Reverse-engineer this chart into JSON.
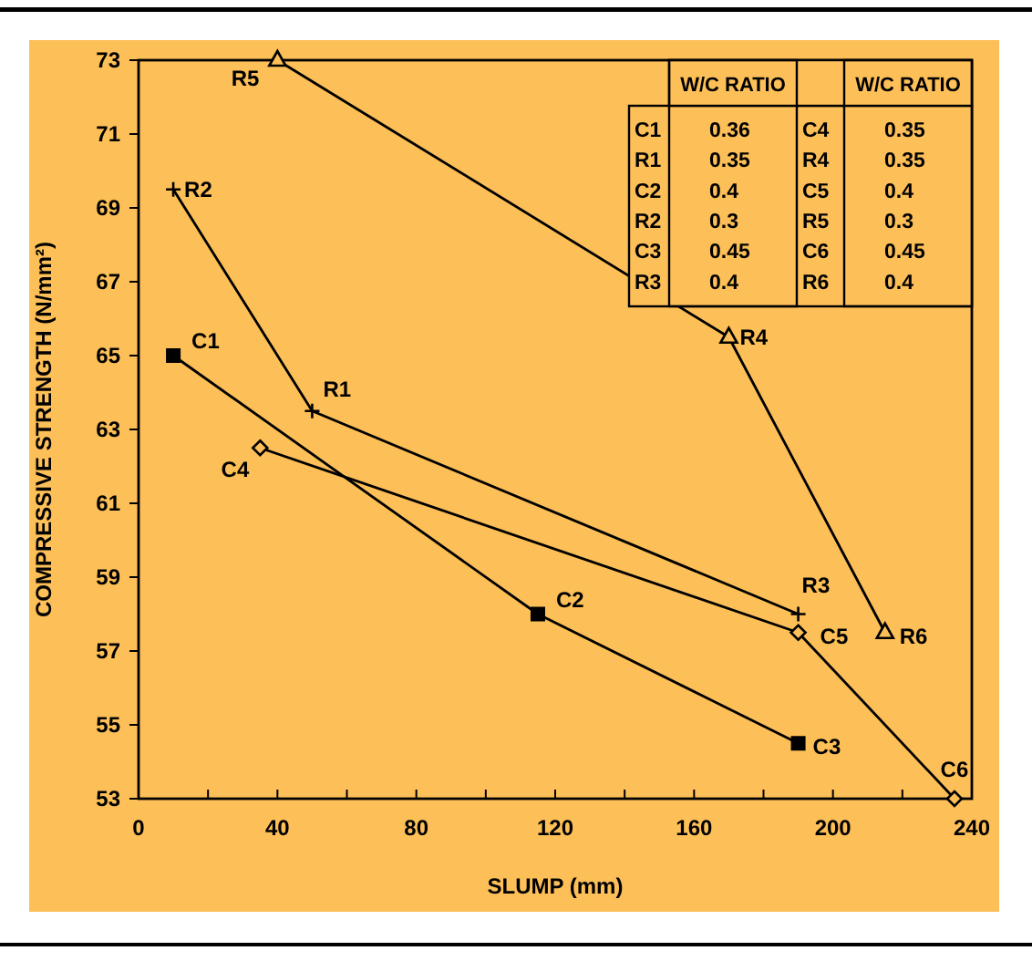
{
  "chart_data": {
    "type": "line",
    "xlabel": "SLUMP (mm)",
    "ylabel": "COMPRESSIVE STRENGTH (N/mm²)",
    "xlim": [
      0,
      240
    ],
    "ylim": [
      53,
      73
    ],
    "xticks": [
      0,
      {
        "value": 20,
        "label": null
      },
      40,
      {
        "value": 60,
        "label": null
      },
      80,
      {
        "value": 100,
        "label": null
      },
      120,
      {
        "value": 140,
        "label": null
      },
      160,
      {
        "value": 180,
        "label": null
      },
      200,
      {
        "value": 220,
        "label": null
      },
      240
    ],
    "yticks": [
      53,
      55,
      57,
      59,
      61,
      63,
      65,
      67,
      69,
      71,
      73
    ],
    "grid": false,
    "series": [
      {
        "color": "#000000",
        "marker": "square",
        "x": [
          10,
          115,
          190
        ],
        "values": [
          65,
          58,
          54.5
        ]
      },
      {
        "color": "#000000",
        "marker": "cross",
        "x": [
          10,
          50,
          190
        ],
        "values": [
          69.5,
          63.5,
          58
        ]
      },
      {
        "color": "#000000",
        "marker": "diamond",
        "x": [
          35,
          190,
          235
        ],
        "values": [
          62.5,
          57.5,
          53
        ]
      },
      {
        "color": "#000000",
        "marker": "triangle",
        "x": [
          40,
          170,
          215
        ],
        "values": [
          73,
          65.5,
          57.5
        ]
      }
    ],
    "annotations": [
      {
        "text": "C1",
        "x": 10,
        "y": 65
      },
      {
        "text": "C2",
        "x": 115,
        "y": 58
      },
      {
        "text": "C3",
        "x": 190,
        "y": 54.5
      },
      {
        "text": "R2",
        "x": 10,
        "y": 69.5
      },
      {
        "text": "R1",
        "x": 50,
        "y": 63.5
      },
      {
        "text": "R3",
        "x": 190,
        "y": 58
      },
      {
        "text": "C4",
        "x": 35,
        "y": 62.5
      },
      {
        "text": "C5",
        "x": 190,
        "y": 57.5
      },
      {
        "text": "C6",
        "x": 235,
        "y": 53
      },
      {
        "text": "R5",
        "x": 40,
        "y": 73
      },
      {
        "text": "R4",
        "x": 170,
        "y": 65.5
      },
      {
        "text": "R6",
        "x": 215,
        "y": 57.5
      },
      "W/C RATIO",
      "W/C RATIO",
      "C1",
      "0.36",
      "C4",
      "0.35",
      "R1",
      "0.35",
      "R4",
      "0.35",
      "C2",
      "0.4",
      "C5",
      "0.4",
      "R2",
      "0.3",
      "R5",
      "0.3",
      "C3",
      "0.45",
      "C6",
      "0.45",
      "R3",
      "0.4",
      "R6",
      "0.4"
    ]
  }
}
